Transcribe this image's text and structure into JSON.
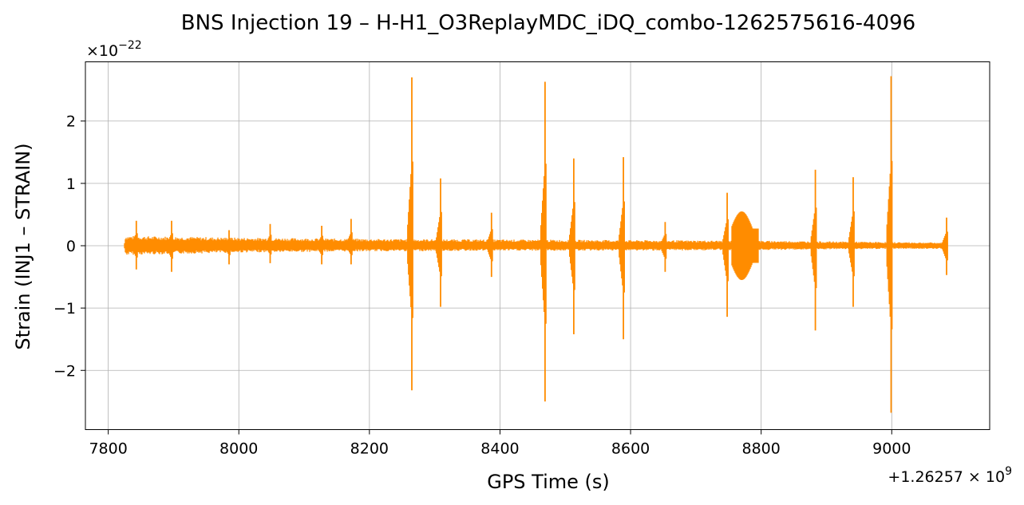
{
  "chart_data": {
    "type": "line",
    "title": "BNS Injection 19 – H-H1_O3ReplayMDC_iDQ_combo-1262575616-4096",
    "xlabel": "GPS Time (s)",
    "ylabel": "Strain (INJ1 – STRAIN)",
    "x_offset_label": "+1.26257×10^9",
    "y_scale_label": "×10^−22",
    "xlim": [
      7765,
      9150
    ],
    "ylim": [
      -2.95,
      2.95
    ],
    "x_ticks": [
      7800,
      8000,
      8200,
      8400,
      8600,
      8800,
      9000
    ],
    "x_tick_labels": [
      "7800",
      "8000",
      "8200",
      "8400",
      "8600",
      "8800",
      "9000"
    ],
    "y_ticks": [
      -2,
      -1,
      0,
      1,
      2
    ],
    "y_tick_labels": [
      "−2",
      "−1",
      "0",
      "1",
      "2"
    ],
    "grid": true,
    "series": [
      {
        "color": "#ff8c00",
        "x_range": [
          7825,
          9085
        ],
        "baseline_envelope": [
          {
            "x": 7825,
            "upper": 0.16,
            "lower": -0.15
          },
          {
            "x": 8000,
            "upper": 0.13,
            "lower": -0.11
          },
          {
            "x": 8200,
            "upper": 0.11,
            "lower": -0.09
          },
          {
            "x": 8400,
            "upper": 0.1,
            "lower": -0.08
          },
          {
            "x": 8600,
            "upper": 0.09,
            "lower": -0.08
          },
          {
            "x": 8800,
            "upper": 0.08,
            "lower": -0.07
          },
          {
            "x": 9000,
            "upper": 0.06,
            "lower": -0.05
          },
          {
            "x": 9085,
            "upper": 0.05,
            "lower": -0.05
          }
        ],
        "events": [
          {
            "t": 7843,
            "max": 0.4,
            "min": -0.38
          },
          {
            "t": 7897,
            "max": 0.4,
            "min": -0.42
          },
          {
            "t": 7985,
            "max": 0.25,
            "min": -0.3
          },
          {
            "t": 8048,
            "max": 0.35,
            "min": -0.28
          },
          {
            "t": 8127,
            "max": 0.32,
            "min": -0.3
          },
          {
            "t": 8172,
            "max": 0.43,
            "min": -0.3
          },
          {
            "t": 8265,
            "max": 2.7,
            "min": -2.32
          },
          {
            "t": 8309,
            "max": 1.08,
            "min": -0.98
          },
          {
            "t": 8387,
            "max": 0.53,
            "min": -0.5
          },
          {
            "t": 8469,
            "max": 2.63,
            "min": -2.5
          },
          {
            "t": 8513,
            "max": 1.4,
            "min": -1.42
          },
          {
            "t": 8589,
            "max": 1.42,
            "min": -1.5
          },
          {
            "t": 8653,
            "max": 0.38,
            "min": -0.42
          },
          {
            "t": 8748,
            "max": 0.85,
            "min": -1.14
          },
          {
            "t": 8883,
            "max": 1.22,
            "min": -1.36
          },
          {
            "t": 8941,
            "max": 1.1,
            "min": -0.98
          },
          {
            "t": 8999,
            "max": 2.72,
            "min": -2.68
          },
          {
            "t": 9084,
            "max": 0.45,
            "min": -0.47
          }
        ],
        "burst": {
          "t_start": 8755,
          "t_end": 8795,
          "max": 0.55,
          "min": -0.55
        }
      }
    ]
  }
}
